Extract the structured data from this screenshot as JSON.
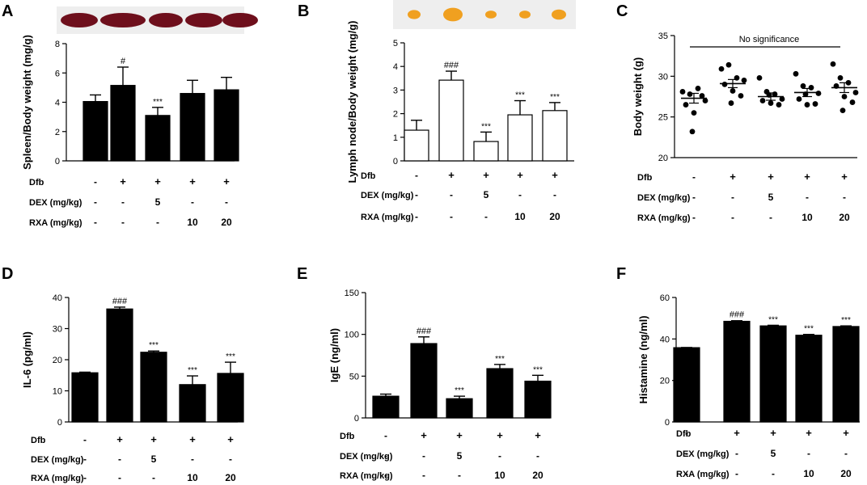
{
  "chart_data": [
    {
      "panel": "A",
      "type": "bar",
      "categories": [
        "1",
        "2",
        "3",
        "4",
        "5"
      ],
      "values": [
        4.05,
        5.15,
        3.1,
        4.6,
        4.85
      ],
      "errors": [
        0.45,
        1.25,
        0.55,
        0.9,
        0.85
      ],
      "fill": "#000000",
      "annotations": [
        "",
        "#",
        "***",
        "",
        ""
      ],
      "ylabel": "Spleen/Body weight (mg/g)",
      "ylim": [
        0,
        8
      ],
      "yticks": [
        0,
        2,
        4,
        6,
        8
      ],
      "tick_labels": [
        "0",
        "2",
        "4",
        "6",
        "8"
      ],
      "photo": "spleen-tissue-photo"
    },
    {
      "panel": "B",
      "type": "bar",
      "categories": [
        "1",
        "2",
        "3",
        "4",
        "5"
      ],
      "values": [
        1.3,
        3.42,
        0.82,
        1.95,
        2.13
      ],
      "errors": [
        0.42,
        0.38,
        0.4,
        0.6,
        0.34
      ],
      "fill": "#ffffff",
      "annotations": [
        "",
        "###",
        "***",
        "***",
        "***"
      ],
      "ylabel": "Lymph node/Body weight (mg/g)",
      "ylim": [
        0,
        5
      ],
      "yticks": [
        0,
        1,
        2,
        3,
        4,
        5
      ],
      "tick_labels": [
        "0",
        "1",
        "2",
        "3",
        "4",
        "5"
      ],
      "photo": "lymph-node-photo"
    },
    {
      "panel": "C",
      "type": "scatter",
      "categories": [
        "1",
        "2",
        "3",
        "4",
        "5"
      ],
      "points": [
        [
          28.1,
          27.8,
          28.5,
          27.0,
          26.5,
          25.5,
          27.6,
          23.2
        ],
        [
          30.9,
          31.4,
          29.8,
          29.5,
          29.0,
          28.2,
          27.6,
          26.7
        ],
        [
          29.8,
          28.1,
          27.8,
          27.2,
          27.0,
          26.7,
          26.5,
          27.7
        ],
        [
          30.3,
          28.8,
          28.6,
          27.9,
          27.2,
          26.5,
          26.6,
          27.8
        ],
        [
          31.5,
          29.8,
          29.2,
          28.0,
          28.8,
          27.5,
          26.8,
          25.8
        ]
      ],
      "means": [
        27.3,
        29.1,
        27.5,
        28.0,
        28.6
      ],
      "errors": [
        0.6,
        0.5,
        0.45,
        0.5,
        0.6
      ],
      "title": "No significance",
      "ylabel": "Body weight (g)",
      "ylim": [
        20,
        35
      ],
      "yticks": [
        20,
        25,
        30,
        35
      ],
      "tick_labels": [
        "20",
        "25",
        "30",
        "35"
      ]
    },
    {
      "panel": "D",
      "type": "bar",
      "categories": [
        "1",
        "2",
        "3",
        "4",
        "5"
      ],
      "values": [
        15.8,
        36.3,
        22.4,
        12.0,
        15.6
      ],
      "errors": [
        0.2,
        0.6,
        0.4,
        2.8,
        3.6
      ],
      "fill": "#000000",
      "annotations": [
        "",
        "###",
        "***",
        "***",
        "***"
      ],
      "ylabel": "IL-6 (pg/ml)",
      "ylim": [
        0,
        40
      ],
      "yticks": [
        0,
        10,
        20,
        30,
        40
      ],
      "tick_labels": [
        "0",
        "10",
        "20",
        "30",
        "40"
      ]
    },
    {
      "panel": "E",
      "type": "bar",
      "categories": [
        "1",
        "2",
        "3",
        "4",
        "5"
      ],
      "values": [
        26.0,
        89.0,
        23.0,
        59.0,
        44.0
      ],
      "errors": [
        2.5,
        8.0,
        3.0,
        5.0,
        7.0
      ],
      "fill": "#000000",
      "annotations": [
        "",
        "###",
        "***",
        "***",
        "***"
      ],
      "ylabel": "IgE (ng/ml)",
      "ylim": [
        0,
        150
      ],
      "yticks": [
        0,
        50,
        100,
        150
      ],
      "tick_labels": [
        "0",
        "50",
        "100",
        "150"
      ]
    },
    {
      "panel": "F",
      "type": "bar",
      "categories": [
        "1",
        "2",
        "3",
        "4",
        "5"
      ],
      "values": [
        35.8,
        48.5,
        46.3,
        41.8,
        46.0
      ],
      "errors": [
        0.1,
        0.3,
        0.3,
        0.4,
        0.3
      ],
      "fill": "#000000",
      "annotations": [
        "",
        "###",
        "***",
        "***",
        "***"
      ],
      "ylabel": "Histamine (ng/ml)",
      "ylim": [
        0,
        60
      ],
      "yticks": [
        0,
        20,
        40,
        60
      ],
      "tick_labels": [
        "0",
        "20",
        "40",
        "60"
      ]
    }
  ],
  "treatment_table": {
    "rows": [
      {
        "label": "Dfb",
        "values": [
          "-",
          "+",
          "+",
          "+",
          "+"
        ]
      },
      {
        "label": "DEX (mg/kg)",
        "values": [
          "-",
          "-",
          "5",
          "-",
          "-"
        ]
      },
      {
        "label": "RXA (mg/kg)",
        "values": [
          "-",
          "-",
          "-",
          "10",
          "20"
        ]
      }
    ]
  },
  "colors": {
    "ink": "#000000",
    "spleen": "#6e0f1c",
    "lymph_node": "#f0a020",
    "photo_bg": "#eeeeee"
  }
}
